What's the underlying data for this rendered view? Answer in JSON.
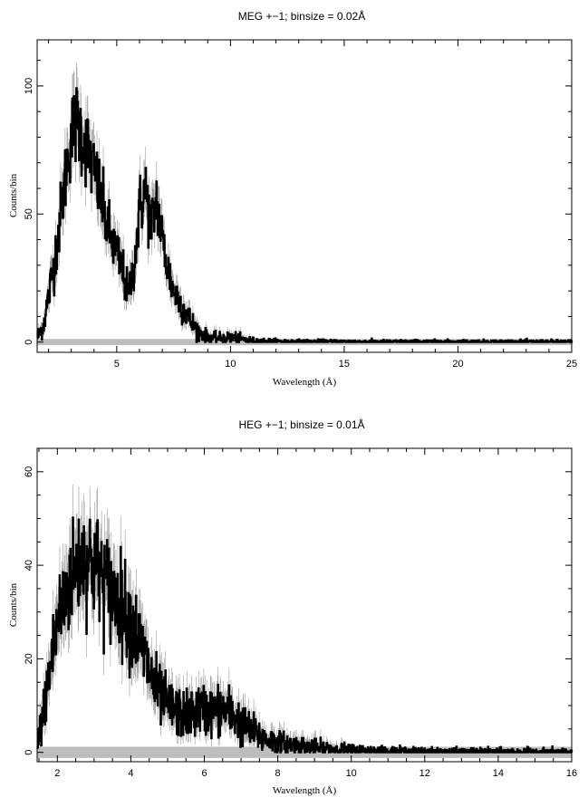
{
  "chart_data": [
    {
      "type": "line",
      "title": "MEG +−1; binsize = 0.02Å",
      "xlabel": "Wavelength (Å)",
      "ylabel": "Counts/bin",
      "xlim": [
        1.5,
        25
      ],
      "ylim": [
        -4,
        118
      ],
      "xticks": [
        5,
        10,
        15,
        20,
        25
      ],
      "yticks": [
        0,
        50,
        100
      ],
      "grid": false,
      "x": [
        1.5,
        1.75,
        2.0,
        2.25,
        2.5,
        2.75,
        3.0,
        3.25,
        3.5,
        3.75,
        4.0,
        4.25,
        4.5,
        4.75,
        5.0,
        5.25,
        5.5,
        5.75,
        6.0,
        6.25,
        6.5,
        6.75,
        7.0,
        7.25,
        7.5,
        7.75,
        8.0,
        8.25,
        8.5,
        8.75,
        9.0,
        9.25,
        9.5,
        9.75,
        10.0,
        10.5,
        11.0,
        12.0,
        13.0,
        14.0,
        16.0,
        18.0,
        20.0,
        22.0,
        25.0
      ],
      "series": [
        {
          "values": [
            2,
            6,
            18,
            32,
            48,
            66,
            82,
            86,
            80,
            74,
            66,
            58,
            48,
            40,
            34,
            28,
            18,
            30,
            52,
            60,
            44,
            56,
            40,
            28,
            20,
            16,
            12,
            8,
            5,
            3,
            2,
            1.5,
            1.5,
            1.5,
            2,
            1,
            0.5,
            0.3,
            0.2,
            0.2,
            0.1,
            0.1,
            0.1,
            0.1,
            0.1
          ],
          "peak_max": 106
        }
      ]
    },
    {
      "type": "line",
      "title": "HEG +−1; binsize = 0.01Å",
      "xlabel": "Wavelength (Å)",
      "ylabel": "Counts/bin",
      "xlim": [
        1.45,
        16
      ],
      "ylim": [
        -2,
        65
      ],
      "xticks": [
        2,
        4,
        6,
        8,
        10,
        12,
        14,
        16
      ],
      "yticks": [
        0,
        20,
        40,
        60
      ],
      "grid": false,
      "x": [
        1.45,
        1.6,
        1.8,
        2.0,
        2.2,
        2.4,
        2.6,
        2.8,
        3.0,
        3.2,
        3.4,
        3.6,
        3.8,
        4.0,
        4.2,
        4.4,
        4.6,
        4.8,
        5.0,
        5.2,
        5.4,
        5.6,
        5.8,
        6.0,
        6.2,
        6.4,
        6.6,
        6.8,
        7.0,
        7.2,
        7.4,
        7.6,
        7.8,
        8.0,
        8.5,
        9.0,
        9.5,
        10.0,
        11.0,
        12.0,
        13.0,
        14.0,
        15.0,
        16.0
      ],
      "series": [
        {
          "values": [
            1,
            8,
            18,
            28,
            33,
            38,
            41,
            42,
            40,
            38,
            35,
            33,
            31,
            28,
            24,
            20,
            15,
            12,
            10,
            9,
            8,
            8,
            9,
            9,
            9,
            9,
            9,
            8,
            6,
            5,
            4,
            3,
            2.5,
            2,
            1.5,
            1,
            0.7,
            0.5,
            0.3,
            0.2,
            0.1,
            0.1,
            0.1,
            0.1
          ],
          "peak_max": 59
        }
      ]
    }
  ]
}
